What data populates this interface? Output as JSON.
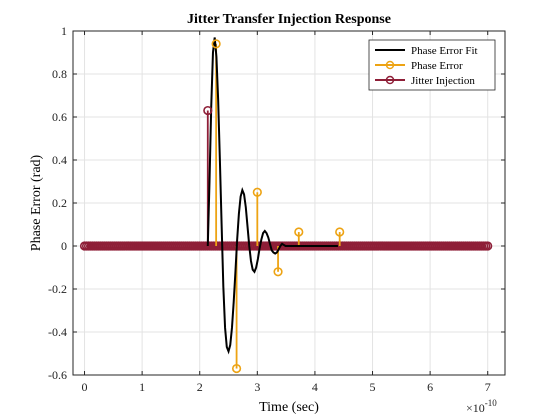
{
  "chart_data": {
    "type": "line",
    "title": "Jitter Transfer Injection Response",
    "xlabel": "Time (sec)",
    "ylabel": "Phase Error (rad)",
    "x_exponent_label": "×10",
    "x_exponent_power": "-10",
    "xlim": [
      -0.2,
      7.3
    ],
    "ylim": [
      -0.6,
      1.0
    ],
    "xticks": [
      0,
      1,
      2,
      3,
      4,
      5,
      6,
      7
    ],
    "xtick_labels": [
      "0",
      "1",
      "2",
      "3",
      "4",
      "5",
      "6",
      "7"
    ],
    "yticks": [
      -0.6,
      -0.4,
      -0.2,
      0,
      0.2,
      0.4,
      0.6,
      0.8,
      1.0
    ],
    "ytick_labels": [
      "-0.6",
      "-0.4",
      "-0.2",
      "0",
      "0.2",
      "0.4",
      "0.6",
      "0.8",
      "1"
    ],
    "grid": true,
    "legend_position": "top-right",
    "colors": {
      "fit": "#000000",
      "phase_error": "#EDA313",
      "jitter": "#8E1E37"
    },
    "series": [
      {
        "name": "Phase Error Fit",
        "style": "line",
        "x": [
          2.14,
          2.17,
          2.2,
          2.23,
          2.26,
          2.29,
          2.32,
          2.35,
          2.38,
          2.41,
          2.44,
          2.47,
          2.5,
          2.53,
          2.56,
          2.59,
          2.62,
          2.65,
          2.68,
          2.71,
          2.74,
          2.77,
          2.8,
          2.83,
          2.86,
          2.89,
          2.92,
          2.95,
          2.98,
          3.01,
          3.04,
          3.07,
          3.1,
          3.13,
          3.16,
          3.19,
          3.22,
          3.25,
          3.28,
          3.31,
          3.34,
          3.37,
          3.4,
          3.43,
          3.46,
          3.49,
          3.52,
          3.55,
          3.58,
          3.61,
          3.64,
          3.67,
          3.7,
          3.73,
          3.76,
          3.79,
          3.82,
          3.85,
          3.88,
          3.91,
          3.94,
          3.97,
          4.0,
          4.03,
          4.06,
          4.09,
          4.12,
          4.15,
          4.18,
          4.21,
          4.24,
          4.27,
          4.3,
          4.33,
          4.36,
          4.4
        ],
        "y": [
          0.0,
          0.3,
          0.65,
          0.9,
          0.97,
          0.88,
          0.68,
          0.4,
          0.1,
          -0.19,
          -0.38,
          -0.47,
          -0.49,
          -0.46,
          -0.38,
          -0.26,
          -0.12,
          0.03,
          0.15,
          0.23,
          0.26,
          0.24,
          0.18,
          0.09,
          0.0,
          -0.07,
          -0.11,
          -0.12,
          -0.1,
          -0.06,
          -0.01,
          0.03,
          0.06,
          0.07,
          0.06,
          0.04,
          0.01,
          -0.02,
          -0.03,
          -0.035,
          -0.03,
          -0.015,
          0.0,
          0.01,
          0.005,
          0.0,
          0.0,
          0.0,
          0.0,
          0.0,
          0.0,
          0.0,
          0.0,
          0.0,
          0.0,
          0.0,
          0.0,
          0.0,
          0.0,
          0.0,
          0.0,
          0.0,
          0.0,
          0.0,
          0.0,
          0.0,
          0.0,
          0.0,
          0.0,
          0.0,
          0.0,
          0.0,
          0.0,
          0.0,
          0.0,
          0.0
        ]
      },
      {
        "name": "Phase Error",
        "style": "stem",
        "x": [
          2.285,
          2.64,
          3.0,
          3.36,
          3.72,
          4.43
        ],
        "y": [
          0.94,
          -0.57,
          0.25,
          -0.12,
          0.065,
          0.065
        ]
      },
      {
        "name": "Jitter Injection",
        "style": "stem",
        "x": [
          2.14
        ],
        "y": [
          0.63
        ]
      }
    ]
  }
}
